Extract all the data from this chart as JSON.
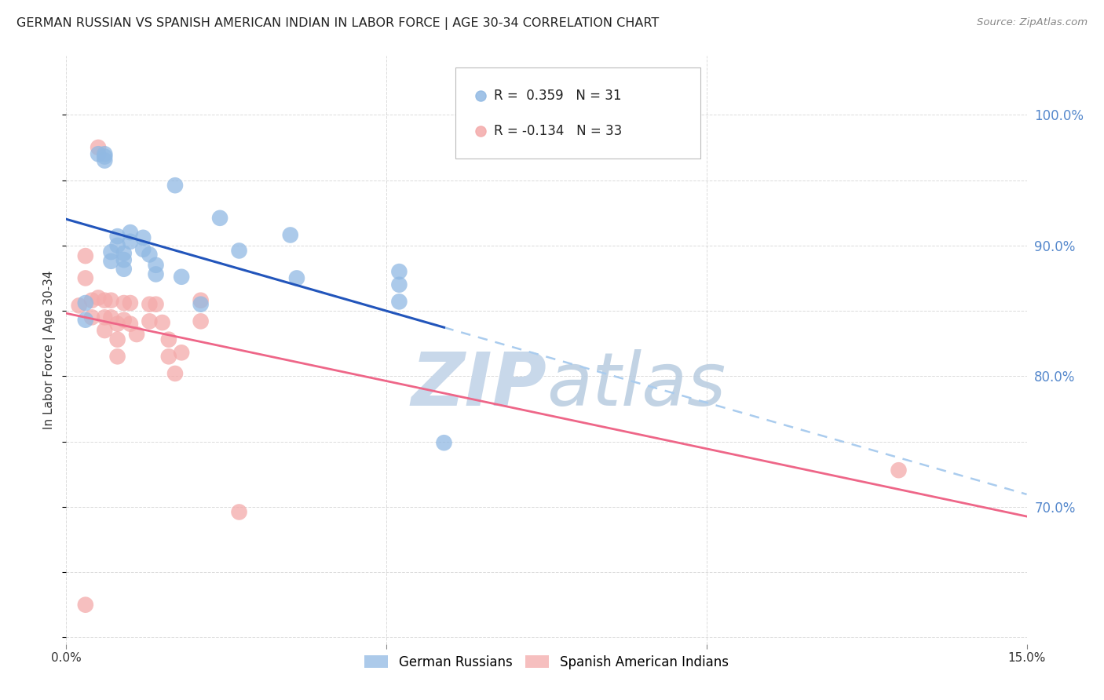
{
  "title": "GERMAN RUSSIAN VS SPANISH AMERICAN INDIAN IN LABOR FORCE | AGE 30-34 CORRELATION CHART",
  "source": "Source: ZipAtlas.com",
  "ylabel": "In Labor Force | Age 30-34",
  "xlim": [
    0.0,
    0.15
  ],
  "ylim": [
    0.595,
    1.045
  ],
  "x_ticks": [
    0.0,
    0.05,
    0.1,
    0.15
  ],
  "x_tick_labels": [
    "0.0%",
    "",
    "",
    "15.0%"
  ],
  "y_ticks_right": [
    0.7,
    0.8,
    0.9,
    1.0
  ],
  "y_tick_labels_right": [
    "70.0%",
    "80.0%",
    "90.0%",
    "100.0%"
  ],
  "legend_blue_label": "German Russians",
  "legend_pink_label": "Spanish American Indians",
  "R_blue": 0.359,
  "N_blue": 31,
  "R_pink": -0.134,
  "N_pink": 33,
  "blue_color": "#91B9E3",
  "pink_color": "#F4AAAA",
  "blue_line_color": "#2255BB",
  "pink_line_color": "#EE6688",
  "dashed_line_color": "#AACCEE",
  "watermark_color": "#C8D8EA",
  "background_color": "#FFFFFF",
  "grid_color": "#CCCCCC",
  "blue_scatter_x": [
    0.003,
    0.003,
    0.005,
    0.006,
    0.006,
    0.006,
    0.007,
    0.007,
    0.008,
    0.008,
    0.009,
    0.009,
    0.009,
    0.01,
    0.01,
    0.012,
    0.012,
    0.013,
    0.014,
    0.014,
    0.017,
    0.018,
    0.021,
    0.024,
    0.027,
    0.035,
    0.036,
    0.052,
    0.052,
    0.052,
    0.059
  ],
  "blue_scatter_y": [
    0.856,
    0.843,
    0.97,
    0.97,
    0.968,
    0.965,
    0.895,
    0.888,
    0.907,
    0.9,
    0.894,
    0.889,
    0.882,
    0.91,
    0.903,
    0.906,
    0.897,
    0.893,
    0.885,
    0.878,
    0.946,
    0.876,
    0.855,
    0.921,
    0.896,
    0.908,
    0.875,
    0.88,
    0.87,
    0.857,
    0.749
  ],
  "pink_scatter_x": [
    0.002,
    0.003,
    0.003,
    0.004,
    0.004,
    0.005,
    0.005,
    0.006,
    0.006,
    0.006,
    0.007,
    0.007,
    0.008,
    0.008,
    0.008,
    0.009,
    0.009,
    0.01,
    0.01,
    0.011,
    0.013,
    0.013,
    0.014,
    0.015,
    0.016,
    0.016,
    0.017,
    0.018,
    0.021,
    0.021,
    0.027,
    0.13,
    0.003
  ],
  "pink_scatter_y": [
    0.854,
    0.892,
    0.875,
    0.858,
    0.845,
    0.975,
    0.86,
    0.858,
    0.845,
    0.835,
    0.858,
    0.845,
    0.84,
    0.828,
    0.815,
    0.856,
    0.843,
    0.856,
    0.84,
    0.832,
    0.855,
    0.842,
    0.855,
    0.841,
    0.828,
    0.815,
    0.802,
    0.818,
    0.858,
    0.842,
    0.696,
    0.728,
    0.625
  ],
  "blue_line_x_start": 0.0,
  "blue_line_x_solid_end": 0.059,
  "blue_line_x_dash_end": 0.15,
  "pink_line_x_start": 0.0,
  "pink_line_x_end": 0.15
}
